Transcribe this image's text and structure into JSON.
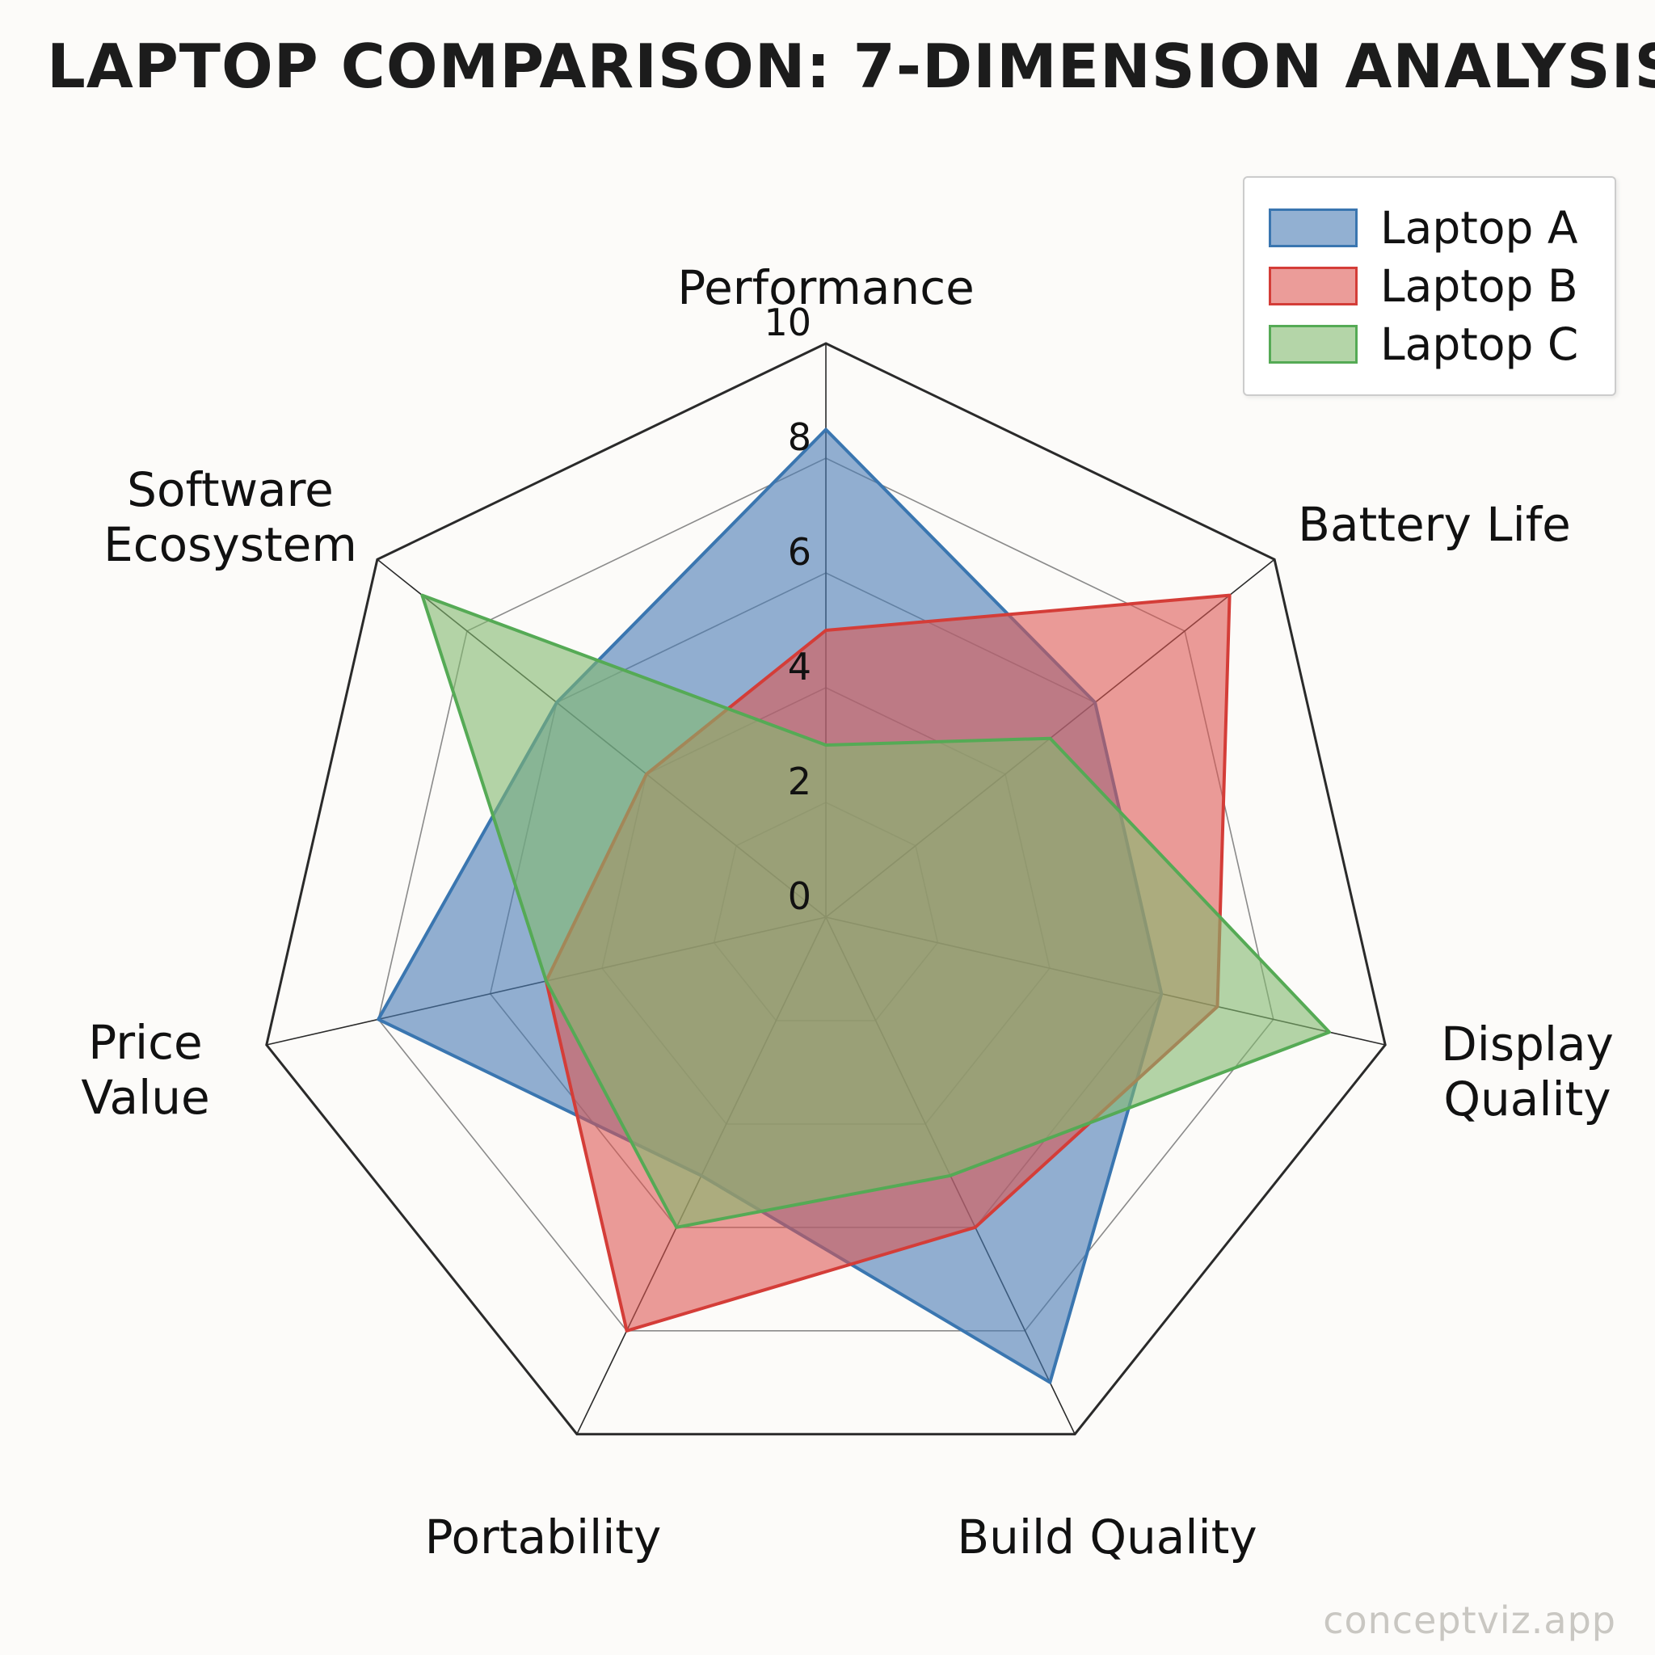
{
  "title": "LAPTOP COMPARISON: 7-DIMENSION ANALYSIS",
  "watermark": "conceptviz.app",
  "chart_data": {
    "type": "radar",
    "categories": [
      "Performance",
      "Battery Life",
      "Display Quality",
      "Build Quality",
      "Portability",
      "Price Value",
      "Software Ecosystem"
    ],
    "ticks": [
      0,
      2,
      4,
      6,
      8,
      10
    ],
    "rmin": 0,
    "rmax": 10,
    "grid": true,
    "legend_position": "upper right",
    "series": [
      {
        "name": "Laptop A",
        "color": "#3a76b0",
        "fill": "rgba(74,124,180,0.60)",
        "values": [
          8.5,
          6,
          6,
          9,
          5,
          8,
          6
        ]
      },
      {
        "name": "Laptop B",
        "color": "#d43d38",
        "fill": "rgba(220,85,80,0.58)",
        "values": [
          5,
          9,
          7,
          6,
          8,
          5,
          4
        ]
      },
      {
        "name": "Laptop C",
        "color": "#55aa55",
        "fill": "rgba(130,185,110,0.60)",
        "values": [
          3,
          5,
          9,
          5,
          6,
          5,
          9
        ]
      }
    ]
  }
}
